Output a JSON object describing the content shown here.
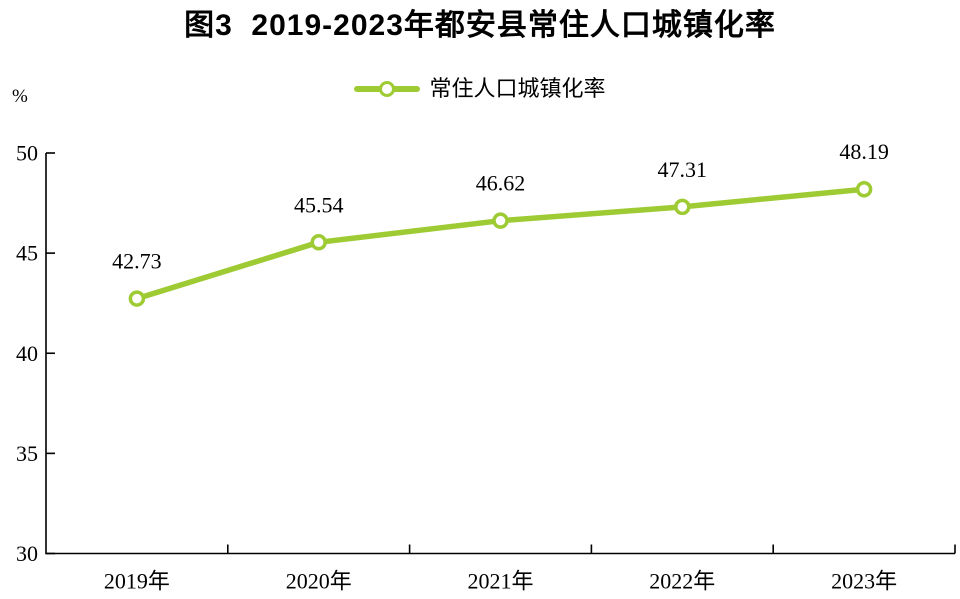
{
  "title": "图3  2019-2023年都安县常住人口城镇化率",
  "legend": {
    "label": "常住人口城镇化率"
  },
  "unit_label": "%",
  "chart_data": {
    "type": "line",
    "title": "图3  2019-2023年都安县常住人口城镇化率",
    "categories": [
      "2019年",
      "2020年",
      "2021年",
      "2022年",
      "2023年"
    ],
    "series": [
      {
        "name": "常住人口城镇化率",
        "values": [
          42.73,
          45.54,
          46.62,
          47.31,
          48.19
        ],
        "data_labels": [
          "42.73",
          "45.54",
          "46.62",
          "47.31",
          "48.19"
        ]
      }
    ],
    "xlabel": "",
    "ylabel": "%",
    "ylim": [
      30,
      50
    ],
    "yticks": [
      30,
      35,
      40,
      45,
      50
    ],
    "grid": false,
    "legend_position": "top-center",
    "marker": "circle-open",
    "colors": {
      "line": "#9ECB33",
      "marker_fill": "#ffffff",
      "axis": "#000000",
      "text": "#000000"
    }
  }
}
